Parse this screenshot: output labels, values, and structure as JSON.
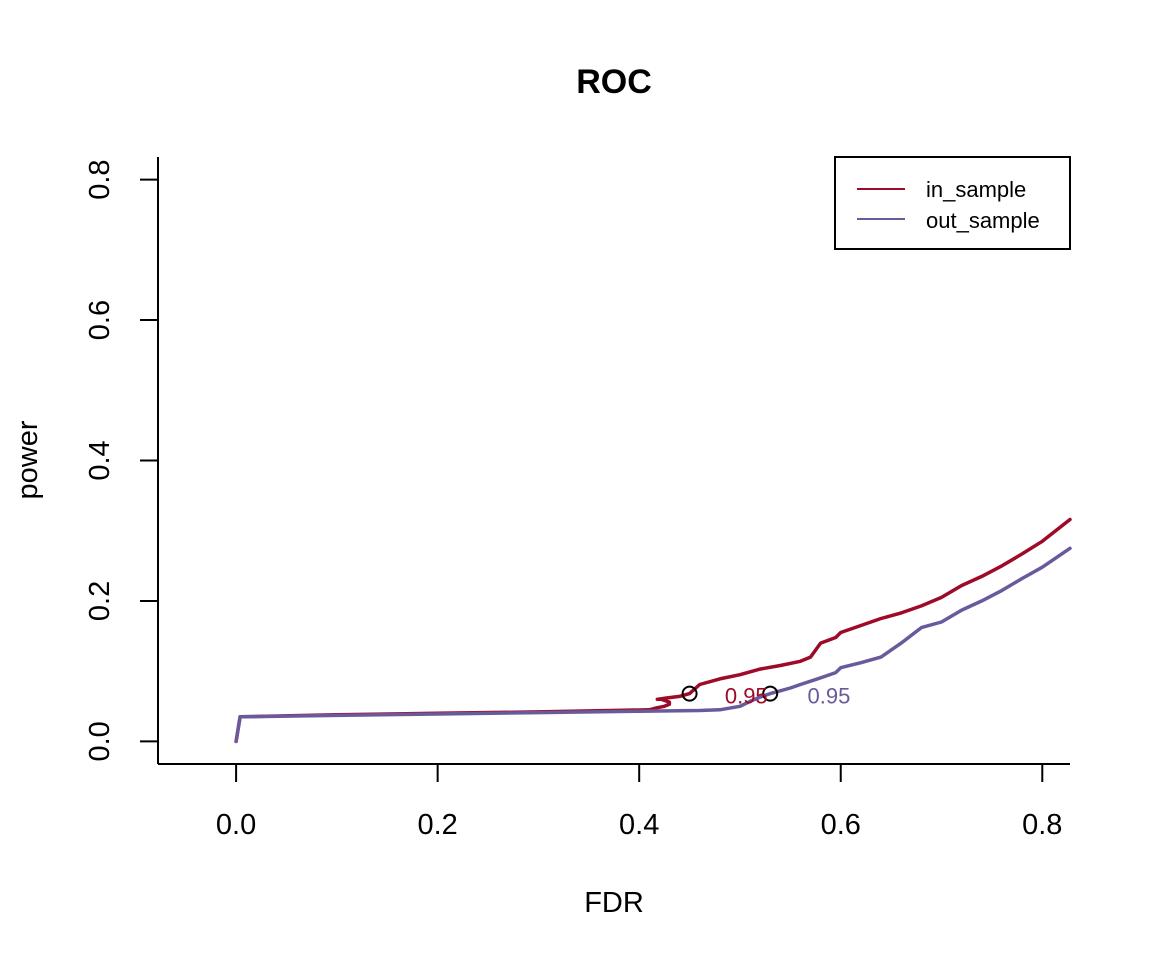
{
  "chart_data": {
    "type": "line",
    "title": "ROC",
    "xlabel": "FDR",
    "ylabel": "power",
    "xlim": [
      -0.0775,
      0.8275
    ],
    "ylim": [
      -0.0322,
      0.8322
    ],
    "x_ticks": [
      0.0,
      0.2,
      0.4,
      0.6,
      0.8
    ],
    "x_tick_labels": [
      "0.0",
      "0.2",
      "0.4",
      "0.6",
      "0.8"
    ],
    "y_ticks": [
      0.0,
      0.2,
      0.4,
      0.6,
      0.8
    ],
    "y_tick_labels": [
      "0.0",
      "0.2",
      "0.4",
      "0.6",
      "0.8"
    ],
    "legend_position": "top-right",
    "series": [
      {
        "name": "in_sample",
        "color": "#9e0a28",
        "x": [
          0.0,
          0.004,
          0.1,
          0.2,
          0.3,
          0.41,
          0.418,
          0.425,
          0.43,
          0.43,
          0.422,
          0.418,
          0.428,
          0.44,
          0.45,
          0.46,
          0.48,
          0.5,
          0.52,
          0.54,
          0.56,
          0.57,
          0.58,
          0.595,
          0.6,
          0.62,
          0.64,
          0.66,
          0.68,
          0.7,
          0.72,
          0.74,
          0.76,
          0.78,
          0.8,
          0.8275
        ],
        "y": [
          0.0,
          0.035,
          0.038,
          0.04,
          0.042,
          0.045,
          0.048,
          0.05,
          0.053,
          0.056,
          0.06,
          0.06,
          0.062,
          0.064,
          0.068,
          0.081,
          0.089,
          0.095,
          0.103,
          0.108,
          0.114,
          0.12,
          0.14,
          0.148,
          0.155,
          0.165,
          0.175,
          0.183,
          0.193,
          0.205,
          0.222,
          0.235,
          0.25,
          0.267,
          0.285,
          0.316
        ]
      },
      {
        "name": "out_sample",
        "color": "#6a5a9c",
        "x": [
          0.0,
          0.004,
          0.1,
          0.2,
          0.3,
          0.4,
          0.46,
          0.48,
          0.5,
          0.51,
          0.52,
          0.53,
          0.54,
          0.55,
          0.56,
          0.575,
          0.585,
          0.595,
          0.6,
          0.62,
          0.64,
          0.66,
          0.68,
          0.7,
          0.72,
          0.74,
          0.76,
          0.78,
          0.8,
          0.8275
        ],
        "y": [
          0.0,
          0.035,
          0.037,
          0.039,
          0.041,
          0.043,
          0.044,
          0.045,
          0.05,
          0.057,
          0.063,
          0.068,
          0.072,
          0.076,
          0.081,
          0.088,
          0.093,
          0.098,
          0.105,
          0.112,
          0.12,
          0.14,
          0.162,
          0.17,
          0.187,
          0.2,
          0.215,
          0.232,
          0.248,
          0.275
        ]
      }
    ],
    "markers": [
      {
        "series": "in_sample",
        "x": 0.45,
        "y": 0.068
      },
      {
        "series": "out_sample",
        "x": 0.53,
        "y": 0.068
      }
    ],
    "annotations": [
      {
        "series": "in_sample",
        "text": "0.95",
        "x": 0.485,
        "y": 0.065,
        "color": "#9e0a28"
      },
      {
        "series": "out_sample",
        "text": "0.95",
        "x": 0.567,
        "y": 0.065,
        "color": "#6a5a9c"
      }
    ]
  }
}
